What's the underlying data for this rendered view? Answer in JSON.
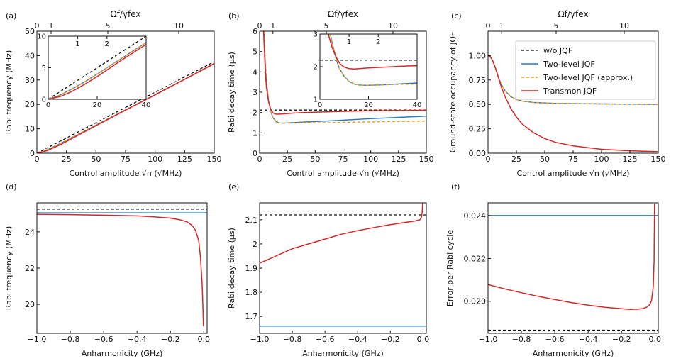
{
  "colors": {
    "wo": "#111111",
    "two_level": "#2878c8",
    "approx": "#f39c12",
    "transmon": "#d62728"
  },
  "legend": {
    "entries": [
      "w/o JQF",
      "Two-level JQF",
      "Two-level JQF (approx.)",
      "Transmon JQF"
    ]
  },
  "chart_data": [
    {
      "type": "line",
      "panel_label": "(a)",
      "xlabel": "Control amplitude √n (√MHz)",
      "ylabel": "Rabi frequency (MHz)",
      "top_xlabel": "Ωf/γfex",
      "xlim": [
        0,
        150
      ],
      "ylim": [
        0,
        50
      ],
      "xticks": [
        0,
        25,
        50,
        75,
        100,
        125,
        150
      ],
      "yticks": [
        0,
        10,
        20,
        30,
        40,
        50
      ],
      "top_ticks": [
        {
          "v": 0,
          "label": "0"
        },
        {
          "v": 12,
          "label": "1"
        },
        {
          "v": 60,
          "label": "5"
        },
        {
          "v": 120,
          "label": "10"
        }
      ],
      "series": [
        {
          "key": "wo",
          "x": [
            0,
            150
          ],
          "y": [
            0,
            37.5
          ]
        },
        {
          "key": "two_level",
          "x": [
            0,
            5,
            10,
            20,
            40,
            60,
            80,
            100,
            120,
            150
          ],
          "y": [
            0,
            0.7,
            1.7,
            4.0,
            9.0,
            14.0,
            19.0,
            24.0,
            29.0,
            36.6
          ]
        },
        {
          "key": "approx",
          "x": [
            0,
            5,
            10,
            20,
            40,
            60,
            80,
            100,
            120,
            150
          ],
          "y": [
            0,
            0.7,
            1.7,
            4.0,
            9.0,
            14.0,
            19.0,
            24.0,
            29.0,
            36.6
          ]
        },
        {
          "key": "transmon",
          "x": [
            0,
            5,
            10,
            20,
            40,
            60,
            80,
            100,
            120,
            150
          ],
          "y": [
            0,
            0.5,
            1.3,
            3.5,
            8.7,
            13.8,
            18.9,
            23.9,
            29.0,
            36.8
          ]
        }
      ],
      "inset": {
        "xlim": [
          0,
          40
        ],
        "ylim": [
          0,
          10
        ],
        "xticks": [
          0,
          20,
          40
        ],
        "yticks": [
          0,
          5,
          10
        ],
        "top_ticks": [
          {
            "v": 12,
            "label": "1"
          },
          {
            "v": 24,
            "label": "2"
          }
        ],
        "series": [
          {
            "key": "wo",
            "x": [
              0,
              40
            ],
            "y": [
              0,
              10
            ]
          },
          {
            "key": "two_level",
            "x": [
              0,
              5,
              10,
              15,
              20,
              30,
              40
            ],
            "y": [
              0,
              0.7,
              1.7,
              2.8,
              4.0,
              6.5,
              9.0
            ]
          },
          {
            "key": "approx",
            "x": [
              0,
              5,
              10,
              15,
              20,
              30,
              40
            ],
            "y": [
              0,
              0.7,
              1.7,
              2.8,
              4.0,
              6.5,
              9.0
            ]
          },
          {
            "key": "transmon",
            "x": [
              0,
              5,
              10,
              15,
              20,
              30,
              40
            ],
            "y": [
              0,
              0.45,
              1.3,
              2.4,
              3.6,
              6.2,
              8.7
            ]
          }
        ]
      }
    },
    {
      "type": "line",
      "panel_label": "(b)",
      "xlabel": "Control amplitude √n (√MHz)",
      "ylabel": "Rabi decay time (μs)",
      "top_xlabel": "Ωf/γfex",
      "xlim": [
        0,
        150
      ],
      "ylim": [
        0,
        6
      ],
      "xticks": [
        0,
        25,
        50,
        75,
        100,
        125,
        150
      ],
      "yticks": [
        0,
        1,
        2,
        3,
        4,
        5,
        6
      ],
      "top_ticks": [
        {
          "v": 0,
          "label": "0"
        },
        {
          "v": 12,
          "label": "1"
        },
        {
          "v": 60,
          "label": "5"
        },
        {
          "v": 120,
          "label": "10"
        }
      ],
      "series": [
        {
          "key": "wo",
          "x": [
            0,
            150
          ],
          "y": [
            2.12,
            2.12
          ]
        },
        {
          "key": "two_level",
          "x": [
            4,
            5,
            6,
            8,
            10,
            12,
            15,
            18,
            20,
            25,
            30,
            40,
            60,
            80,
            100,
            125,
            150
          ],
          "y": [
            6.0,
            4.6,
            3.6,
            2.6,
            2.05,
            1.75,
            1.55,
            1.49,
            1.48,
            1.49,
            1.5,
            1.53,
            1.58,
            1.64,
            1.7,
            1.76,
            1.82
          ]
        },
        {
          "key": "approx",
          "x": [
            4,
            5,
            6,
            8,
            10,
            12,
            15,
            18,
            20,
            25,
            30,
            40,
            60,
            80,
            100,
            125,
            150
          ],
          "y": [
            6.0,
            4.6,
            3.6,
            2.6,
            2.05,
            1.75,
            1.55,
            1.49,
            1.48,
            1.48,
            1.48,
            1.49,
            1.5,
            1.52,
            1.54,
            1.56,
            1.58
          ]
        },
        {
          "key": "transmon",
          "x": [
            3.5,
            4,
            5,
            6,
            8,
            10,
            12,
            14,
            16,
            20,
            25,
            30,
            40,
            60,
            80,
            100,
            125,
            150
          ],
          "y": [
            6.0,
            5.4,
            4.2,
            3.3,
            2.55,
            2.15,
            1.98,
            1.93,
            1.92,
            1.93,
            1.95,
            1.97,
            2.0,
            2.03,
            2.06,
            2.09,
            2.1,
            2.11
          ]
        }
      ],
      "inset": {
        "xlim": [
          0,
          40
        ],
        "ylim": [
          1,
          3
        ],
        "xticks": [
          0,
          20,
          40
        ],
        "yticks": [
          1,
          2,
          3
        ],
        "top_ticks": [
          {
            "v": 12,
            "label": "1"
          },
          {
            "v": 24,
            "label": "2"
          }
        ],
        "series": [
          {
            "key": "wo",
            "x": [
              0,
              40
            ],
            "y": [
              2.2,
              2.2
            ]
          },
          {
            "key": "two_level",
            "x": [
              4.3,
              5,
              6,
              7,
              8,
              10,
              12,
              14,
              16,
              18,
              20,
              25,
              30,
              35,
              40
            ],
            "y": [
              3.0,
              2.75,
              2.45,
              2.15,
              1.95,
              1.7,
              1.55,
              1.47,
              1.44,
              1.43,
              1.43,
              1.44,
              1.46,
              1.48,
              1.5
            ]
          },
          {
            "key": "approx",
            "x": [
              4.3,
              5,
              6,
              7,
              8,
              10,
              12,
              14,
              16,
              18,
              20,
              25,
              30,
              35,
              40
            ],
            "y": [
              3.0,
              2.75,
              2.45,
              2.15,
              1.95,
              1.7,
              1.55,
              1.47,
              1.44,
              1.43,
              1.43,
              1.44,
              1.45,
              1.46,
              1.47
            ]
          },
          {
            "key": "transmon",
            "x": [
              3.5,
              4,
              5,
              6,
              7,
              8,
              9,
              10,
              12,
              14,
              16,
              20,
              25,
              30,
              35,
              40
            ],
            "y": [
              3.0,
              2.85,
              2.6,
              2.4,
              2.25,
              2.12,
              2.04,
              1.99,
              1.94,
              1.93,
              1.94,
              1.96,
              1.98,
              2.0,
              2.02,
              2.03
            ]
          }
        ]
      }
    },
    {
      "type": "line",
      "panel_label": "(c)",
      "xlabel": "Control amplitude √n (√MHz)",
      "ylabel": "Ground-state occupancy of JQF",
      "top_xlabel": "Ωf/γfex",
      "xlim": [
        0,
        150
      ],
      "ylim": [
        0,
        1.25
      ],
      "xticks": [
        0,
        25,
        50,
        75,
        100,
        125,
        150
      ],
      "yticks": [
        0,
        0.25,
        0.5,
        0.75,
        1.0,
        1.25
      ],
      "ytick_labels": [
        "0.00",
        "0.25",
        "0.50",
        "0.75",
        "1.00",
        ""
      ],
      "top_ticks": [
        {
          "v": 0,
          "label": "0"
        },
        {
          "v": 12,
          "label": "1"
        },
        {
          "v": 60,
          "label": "5"
        },
        {
          "v": 120,
          "label": "10"
        }
      ],
      "legend_position": "top-right",
      "series": [
        {
          "key": "two_level",
          "x": [
            0,
            2,
            4,
            6,
            8,
            10,
            12,
            15,
            20,
            25,
            30,
            40,
            60,
            100,
            150
          ],
          "y": [
            1.0,
            0.99,
            0.95,
            0.89,
            0.82,
            0.75,
            0.7,
            0.64,
            0.58,
            0.55,
            0.535,
            0.52,
            0.51,
            0.505,
            0.5
          ]
        },
        {
          "key": "approx",
          "x": [
            0,
            2,
            4,
            6,
            8,
            10,
            12,
            15,
            20,
            25,
            30,
            40,
            60,
            100,
            150
          ],
          "y": [
            1.0,
            0.99,
            0.95,
            0.89,
            0.82,
            0.75,
            0.7,
            0.64,
            0.58,
            0.55,
            0.535,
            0.52,
            0.51,
            0.505,
            0.5
          ]
        },
        {
          "key": "transmon",
          "x": [
            0,
            2,
            4,
            6,
            8,
            10,
            12,
            15,
            20,
            25,
            30,
            40,
            50,
            60,
            75,
            100,
            125,
            150
          ],
          "y": [
            1.0,
            0.99,
            0.95,
            0.89,
            0.82,
            0.74,
            0.67,
            0.58,
            0.46,
            0.37,
            0.3,
            0.21,
            0.15,
            0.11,
            0.075,
            0.04,
            0.025,
            0.015
          ]
        }
      ]
    },
    {
      "type": "line",
      "panel_label": "(d)",
      "xlabel": "Anharmonicity (GHz)",
      "ylabel": "Rabi frequency (MHz)",
      "xlim": [
        -1.0,
        0.02
      ],
      "ylim": [
        18.4,
        25.6
      ],
      "xticks": [
        -1.0,
        -0.8,
        -0.6,
        -0.4,
        -0.2,
        0.0
      ],
      "xtick_labels": [
        "−1.0",
        "−0.8",
        "−0.6",
        "−0.4",
        "−0.2",
        "0.0"
      ],
      "yticks": [
        20,
        22,
        24
      ],
      "series": [
        {
          "key": "wo",
          "x": [
            -1.0,
            0.02
          ],
          "y": [
            25.25,
            25.25
          ]
        },
        {
          "key": "two_level",
          "x": [
            -1.0,
            0.02
          ],
          "y": [
            25.05,
            25.05
          ]
        },
        {
          "key": "transmon",
          "x": [
            -1.0,
            -0.8,
            -0.6,
            -0.4,
            -0.3,
            -0.2,
            -0.15,
            -0.1,
            -0.07,
            -0.05,
            -0.03,
            -0.02,
            -0.01,
            -0.005,
            -0.002
          ],
          "y": [
            24.97,
            24.95,
            24.92,
            24.88,
            24.83,
            24.76,
            24.68,
            24.55,
            24.35,
            24.1,
            23.5,
            22.6,
            21.2,
            19.8,
            18.8
          ]
        }
      ]
    },
    {
      "type": "line",
      "panel_label": "(e)",
      "xlabel": "Anharmonicity (GHz)",
      "ylabel": "Rabi decay time (μs)",
      "xlim": [
        -1.0,
        0.02
      ],
      "ylim": [
        1.63,
        2.17
      ],
      "xticks": [
        -1.0,
        -0.8,
        -0.6,
        -0.4,
        -0.2,
        0.0
      ],
      "xtick_labels": [
        "−1.0",
        "−0.8",
        "−0.6",
        "−0.4",
        "−0.2",
        "0.0"
      ],
      "yticks": [
        1.7,
        1.8,
        1.9,
        2.0,
        2.1
      ],
      "series": [
        {
          "key": "wo",
          "x": [
            -1.0,
            0.02
          ],
          "y": [
            2.12,
            2.12
          ]
        },
        {
          "key": "two_level",
          "x": [
            -1.0,
            0.02
          ],
          "y": [
            1.66,
            1.66
          ]
        },
        {
          "key": "transmon",
          "x": [
            -1.0,
            -0.9,
            -0.8,
            -0.7,
            -0.6,
            -0.5,
            -0.4,
            -0.3,
            -0.2,
            -0.1,
            -0.05,
            -0.02,
            -0.01,
            -0.005,
            -0.002
          ],
          "y": [
            1.92,
            1.95,
            1.98,
            2.0,
            2.02,
            2.04,
            2.055,
            2.068,
            2.08,
            2.09,
            2.095,
            2.1,
            2.11,
            2.13,
            2.17
          ]
        }
      ]
    },
    {
      "type": "line",
      "panel_label": "(f)",
      "xlabel": "Anharmonicity (GHz)",
      "ylabel": "Error per Rabi cycle",
      "xlim": [
        -1.0,
        0.02
      ],
      "ylim": [
        0.0185,
        0.0246
      ],
      "xticks": [
        -1.0,
        -0.8,
        -0.6,
        -0.4,
        -0.2,
        0.0
      ],
      "xtick_labels": [
        "−1.0",
        "−0.8",
        "−0.6",
        "−0.4",
        "−0.2",
        "0.0"
      ],
      "yticks": [
        0.02,
        0.022,
        0.024
      ],
      "ytick_labels": [
        "0.020",
        "0.022",
        "0.024"
      ],
      "series": [
        {
          "key": "wo",
          "x": [
            -1.0,
            0.02
          ],
          "y": [
            0.01865,
            0.01865
          ]
        },
        {
          "key": "two_level",
          "x": [
            -1.0,
            0.02
          ],
          "y": [
            0.02401,
            0.02401
          ]
        },
        {
          "key": "transmon",
          "x": [
            -1.0,
            -0.9,
            -0.8,
            -0.7,
            -0.6,
            -0.5,
            -0.4,
            -0.3,
            -0.2,
            -0.15,
            -0.1,
            -0.07,
            -0.05,
            -0.03,
            -0.02,
            -0.01,
            -0.005,
            -0.002
          ],
          "y": [
            0.02078,
            0.02058,
            0.0204,
            0.02023,
            0.02008,
            0.01994,
            0.01982,
            0.01972,
            0.01965,
            0.01962,
            0.01963,
            0.01966,
            0.01972,
            0.01985,
            0.02005,
            0.02065,
            0.02185,
            0.02455
          ]
        }
      ]
    }
  ]
}
